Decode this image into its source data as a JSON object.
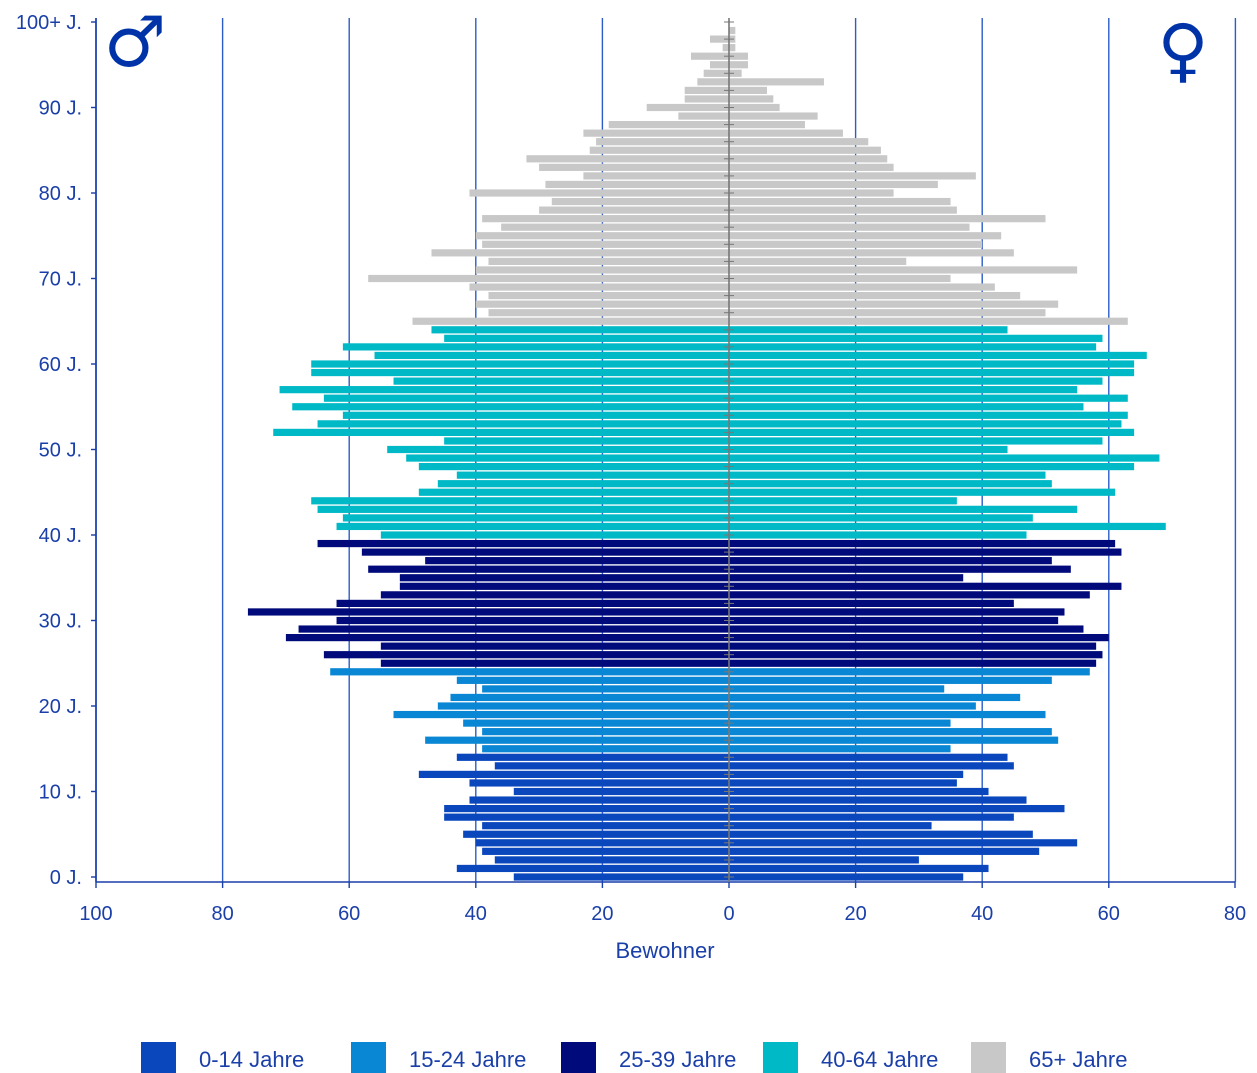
{
  "chart_data": {
    "type": "bar",
    "orientation": "horizontal",
    "xlabel": "Bewohner",
    "x_ticks_left": [
      "100",
      "80",
      "60",
      "40",
      "20",
      "0"
    ],
    "x_ticks_right": [
      "20",
      "40",
      "60",
      "80"
    ],
    "y_ticks": [
      {
        "age": 0,
        "label": "0 J."
      },
      {
        "age": 10,
        "label": "10 J."
      },
      {
        "age": 20,
        "label": "20 J."
      },
      {
        "age": 30,
        "label": "30 J."
      },
      {
        "age": 40,
        "label": "40 J."
      },
      {
        "age": 50,
        "label": "50 J."
      },
      {
        "age": 60,
        "label": "60 J."
      },
      {
        "age": 70,
        "label": "70 J."
      },
      {
        "age": 80,
        "label": "80 J."
      },
      {
        "age": 90,
        "label": "90 J."
      },
      {
        "age": 100,
        "label": "100+ J."
      }
    ],
    "symbols": {
      "male": "♂",
      "female": "♀"
    },
    "xlim_left": [
      0,
      100
    ],
    "xlim_right": [
      0,
      80
    ],
    "grid": true,
    "legend_position": "bottom",
    "age_groups": [
      {
        "name": "0-14 Jahre",
        "color": "#0a47bd",
        "from": 0,
        "to": 14
      },
      {
        "name": "15-24 Jahre",
        "color": "#0a87d4",
        "from": 15,
        "to": 24
      },
      {
        "name": "25-39 Jahre",
        "color": "#000a7a",
        "from": 25,
        "to": 39
      },
      {
        "name": "40-64 Jahre",
        "color": "#00b9c6",
        "from": 40,
        "to": 64
      },
      {
        "name": "65+ Jahre",
        "color": "#c8c8c8",
        "from": 65,
        "to": 100
      }
    ],
    "series": [
      {
        "name": "male",
        "values": [
          34,
          43,
          37,
          39,
          40,
          42,
          39,
          45,
          45,
          41,
          34,
          41,
          49,
          37,
          43,
          39,
          48,
          39,
          42,
          53,
          46,
          44,
          39,
          43,
          63,
          55,
          64,
          55,
          70,
          68,
          62,
          76,
          62,
          55,
          52,
          52,
          57,
          48,
          58,
          65,
          55,
          62,
          61,
          65,
          66,
          49,
          46,
          43,
          49,
          51,
          54,
          45,
          72,
          65,
          61,
          69,
          64,
          71,
          53,
          66,
          66,
          56,
          61,
          45,
          47,
          50,
          38,
          40,
          38,
          41,
          57,
          40,
          38,
          47,
          39,
          40,
          36,
          39,
          30,
          28,
          41,
          29,
          23,
          30,
          32,
          22,
          21,
          23,
          19,
          8,
          13,
          7,
          7,
          5,
          4,
          3,
          6,
          1,
          3,
          0,
          0
        ]
      },
      {
        "name": "female",
        "values": [
          37,
          41,
          30,
          49,
          55,
          48,
          32,
          45,
          53,
          47,
          41,
          36,
          37,
          45,
          44,
          35,
          52,
          51,
          35,
          50,
          39,
          46,
          34,
          51,
          57,
          58,
          59,
          58,
          60,
          56,
          52,
          53,
          45,
          57,
          62,
          37,
          54,
          51,
          62,
          61,
          47,
          69,
          48,
          55,
          36,
          61,
          51,
          50,
          64,
          68,
          44,
          59,
          64,
          62,
          63,
          56,
          63,
          55,
          59,
          64,
          64,
          66,
          58,
          59,
          44,
          63,
          50,
          52,
          46,
          42,
          35,
          55,
          28,
          45,
          40,
          43,
          38,
          50,
          36,
          35,
          26,
          33,
          39,
          26,
          25,
          24,
          22,
          18,
          12,
          14,
          8,
          7,
          6,
          15,
          2,
          3,
          3,
          1,
          1,
          1,
          0
        ]
      }
    ]
  }
}
